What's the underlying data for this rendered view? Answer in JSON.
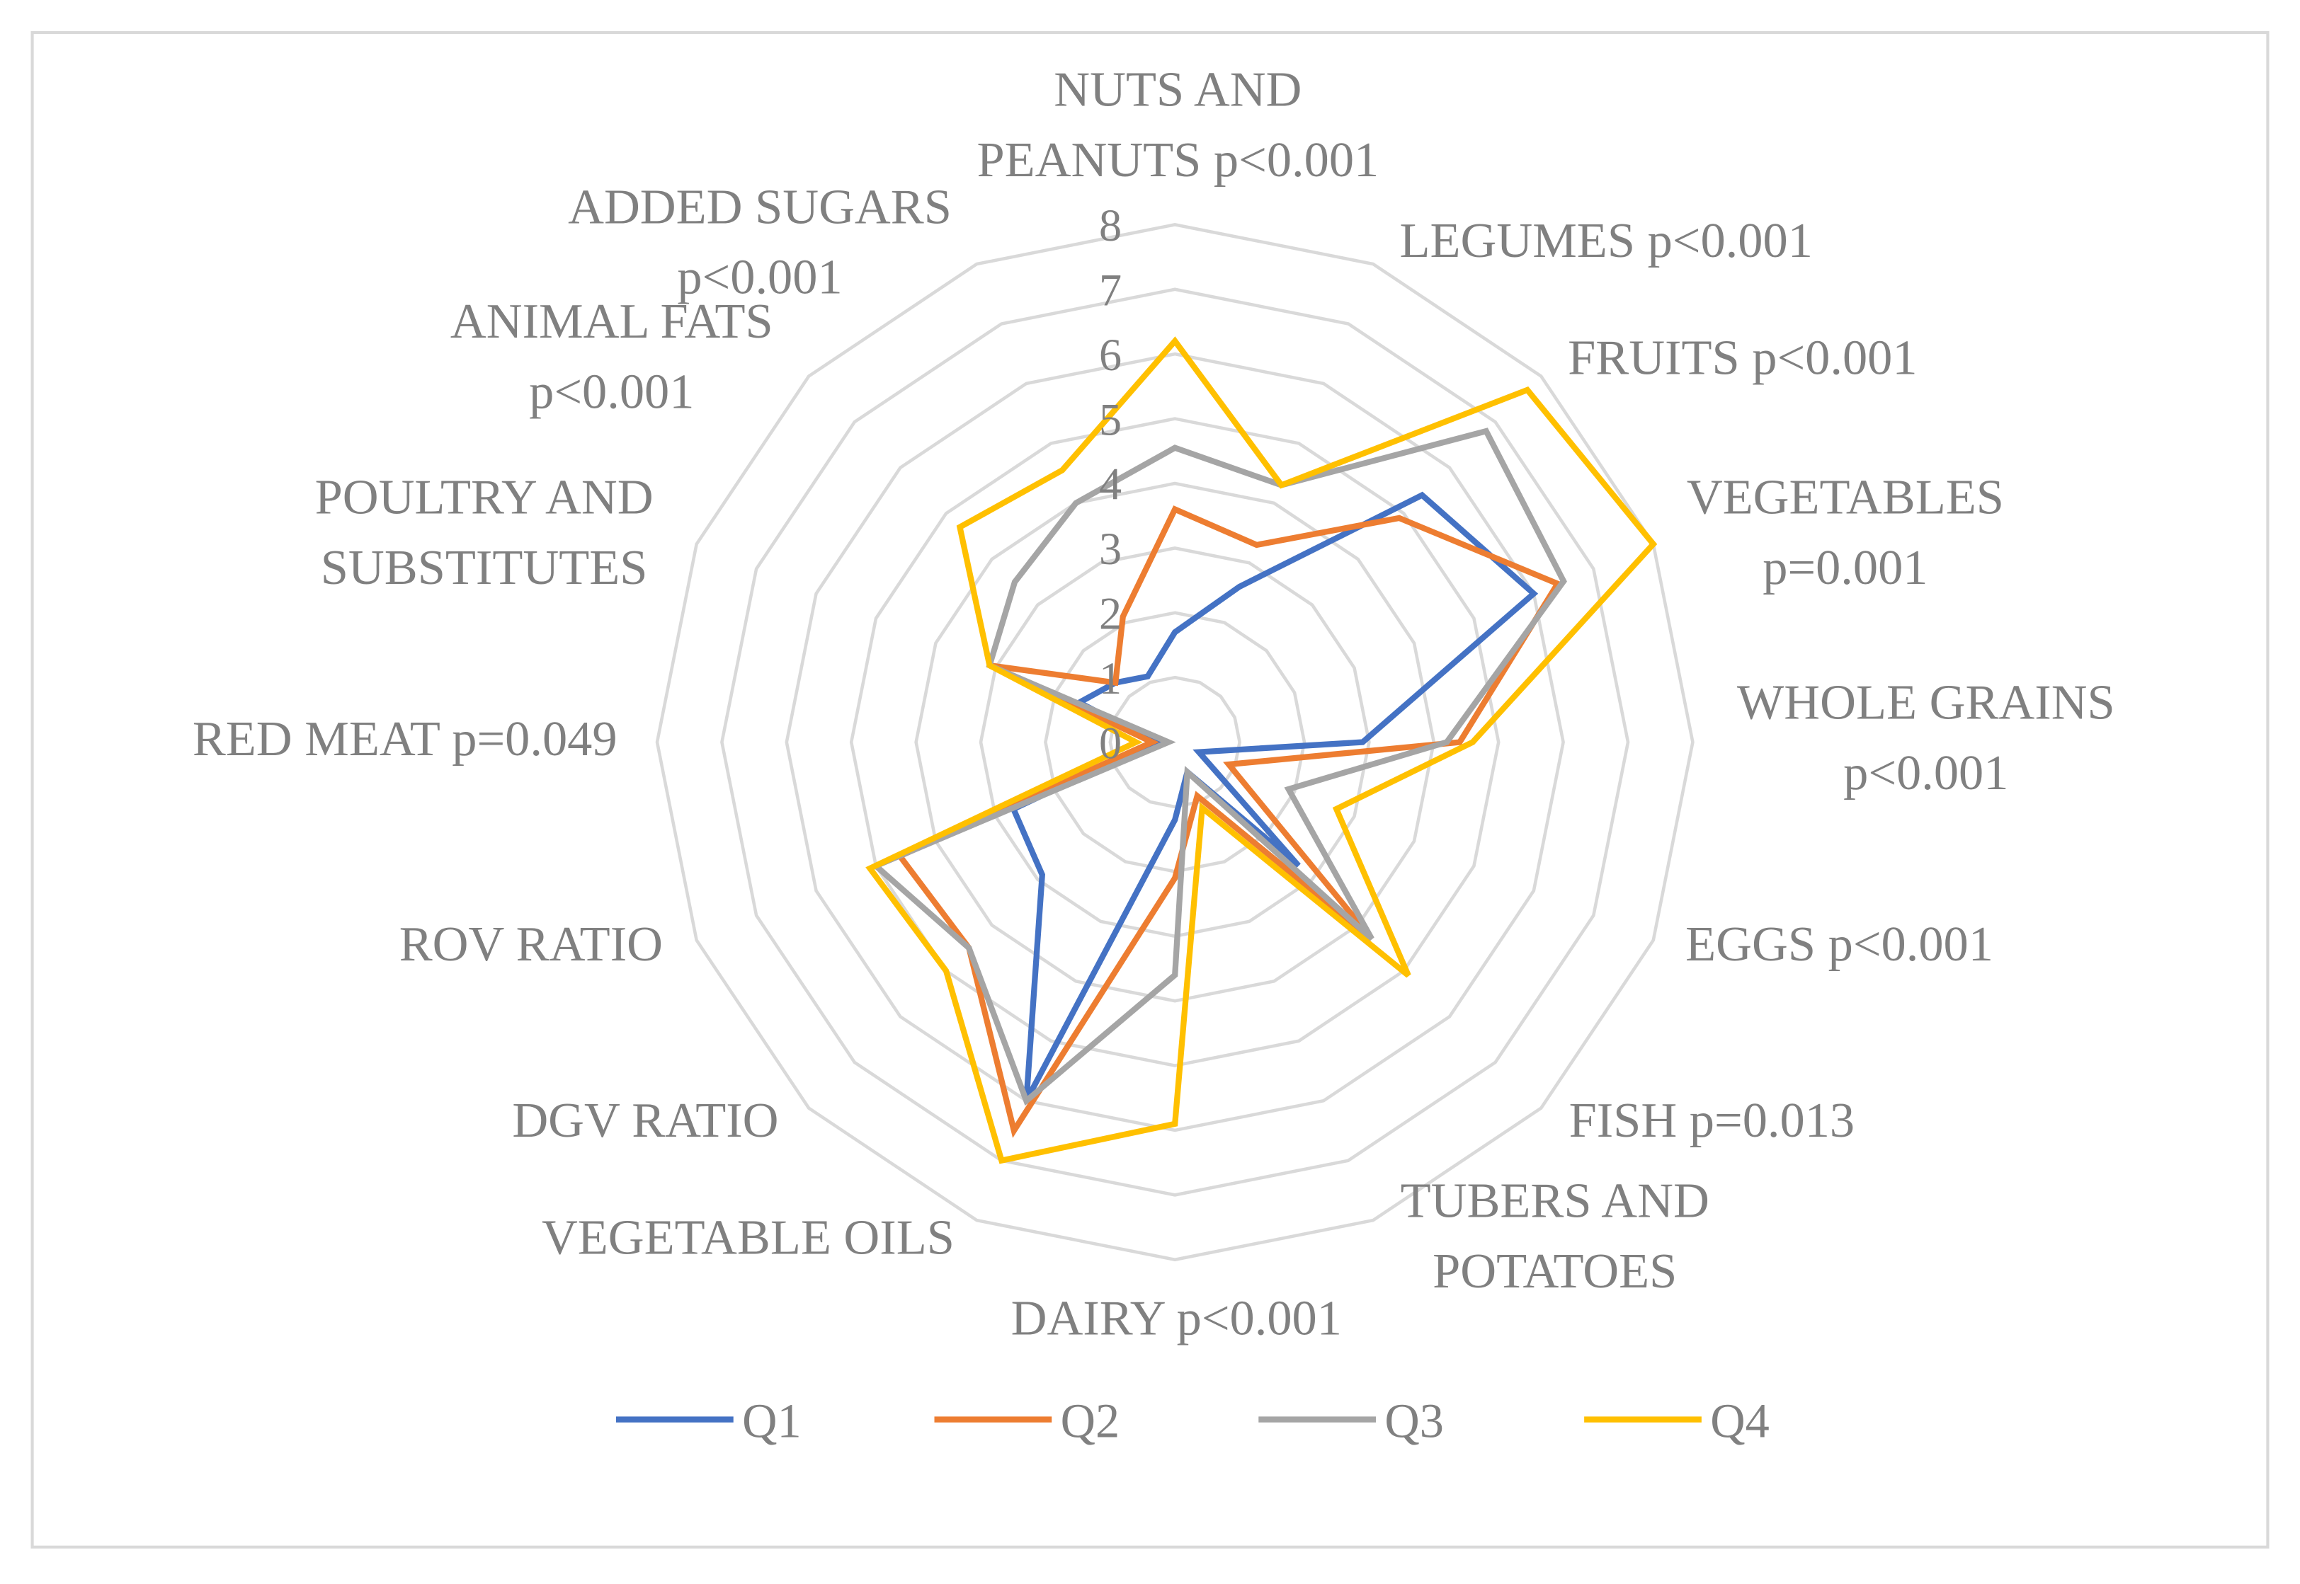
{
  "chart_data": {
    "type": "radar",
    "title": "",
    "categories": [
      [
        "NUTS AND",
        "PEANUTS p<0.001"
      ],
      [
        "LEGUMES p<0.001"
      ],
      [
        "FRUITS p<0.001"
      ],
      [
        "VEGETABLES",
        "p=0.001"
      ],
      [
        "WHOLE GRAINS",
        "p<0.001"
      ],
      [
        "EGGS p<0.001"
      ],
      [
        "FISH p=0.013"
      ],
      [
        "TUBERS AND",
        "POTATOES"
      ],
      [
        "DAIRY p<0.001"
      ],
      [
        "VEGETABLE OILS"
      ],
      [
        "DGV RATIO"
      ],
      [
        "ROV RATIO"
      ],
      [
        "RED MEAT p=0.049"
      ],
      [
        "POULTRY AND",
        "SUBSTITUTES"
      ],
      [
        "ANIMAL FATS",
        "p<0.001"
      ],
      [
        "ADDED SUGARS",
        "p<0.001"
      ]
    ],
    "rlim": [
      0,
      8
    ],
    "ticks": [
      "0",
      "1",
      "2",
      "3",
      "4",
      "5",
      "6",
      "7",
      "8"
    ],
    "grid": true,
    "legend_position": "bottom",
    "series": [
      {
        "name": "Q1",
        "color": "#4472C4",
        "values": [
          1.7,
          2.6,
          5.4,
          6.0,
          2.9,
          0.4,
          2.7,
          0.5,
          1.2,
          6.0,
          2.9,
          2.7,
          0.3,
          1.6,
          1.3,
          1.1
        ]
      },
      {
        "name": "Q2",
        "color": "#ED7D31",
        "values": [
          3.6,
          3.3,
          4.9,
          6.4,
          4.4,
          0.9,
          4.3,
          0.9,
          2.1,
          6.5,
          4.5,
          4.6,
          0.35,
          3.1,
          1.3,
          2.1
        ]
      },
      {
        "name": "Q3",
        "color": "#A5A5A5",
        "values": [
          4.55,
          4.3,
          6.8,
          6.5,
          4.2,
          1.9,
          4.3,
          0.5,
          3.6,
          6.0,
          4.5,
          5.0,
          0.1,
          3.1,
          3.5,
          4.0
        ]
      },
      {
        "name": "Q4",
        "color": "#FFC000",
        "values": [
          6.2,
          4.3,
          7.7,
          8.0,
          4.6,
          2.7,
          5.1,
          1.1,
          5.9,
          7.0,
          5.0,
          5.1,
          0.6,
          3.1,
          4.7,
          4.55
        ]
      }
    ]
  }
}
